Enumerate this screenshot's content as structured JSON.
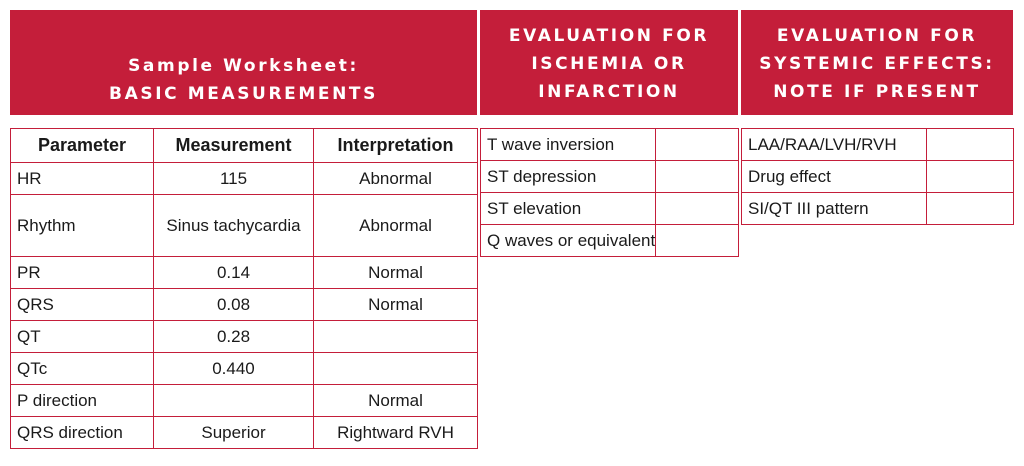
{
  "headers": {
    "basic": {
      "line1": "Sample Worksheet:",
      "line2": "BASIC MEASUREMENTS"
    },
    "ischemia": {
      "line1": "EVALUATION FOR",
      "line2": "ISCHEMIA OR",
      "line3": "INFARCTION"
    },
    "systemic": {
      "line1": "EVALUATION FOR",
      "line2": "SYSTEMIC EFFECTS:",
      "line3": "NOTE IF PRESENT"
    }
  },
  "basic_table": {
    "columns": [
      "Parameter",
      "Measurement",
      "Interpretation"
    ],
    "rows": [
      {
        "parameter": "HR",
        "measurement": "115",
        "interpretation": "Abnormal"
      },
      {
        "parameter": "Rhythm",
        "measurement": "Sinus tachycardia",
        "interpretation": "Abnormal"
      },
      {
        "parameter": "PR",
        "measurement": "0.14",
        "interpretation": "Normal"
      },
      {
        "parameter": "QRS",
        "measurement": "0.08",
        "interpretation": "Normal"
      },
      {
        "parameter": "QT",
        "measurement": "0.28",
        "interpretation": ""
      },
      {
        "parameter": "QTc",
        "measurement": "0.440",
        "interpretation": ""
      },
      {
        "parameter": "P direction",
        "measurement": "",
        "interpretation": "Normal"
      },
      {
        "parameter": "QRS direction",
        "measurement": "Superior",
        "interpretation": "Rightward RVH"
      }
    ]
  },
  "ischemia_table": {
    "rows": [
      {
        "label": "T wave inversion",
        "value": ""
      },
      {
        "label": "ST depression",
        "value": ""
      },
      {
        "label": "ST elevation",
        "value": ""
      },
      {
        "label": "Q waves or equivalent",
        "value": ""
      }
    ]
  },
  "systemic_table": {
    "rows": [
      {
        "label": "LAA/RAA/LVH/RVH",
        "value": ""
      },
      {
        "label": "Drug effect",
        "value": ""
      },
      {
        "label": "SI/QT III pattern",
        "value": ""
      }
    ]
  }
}
